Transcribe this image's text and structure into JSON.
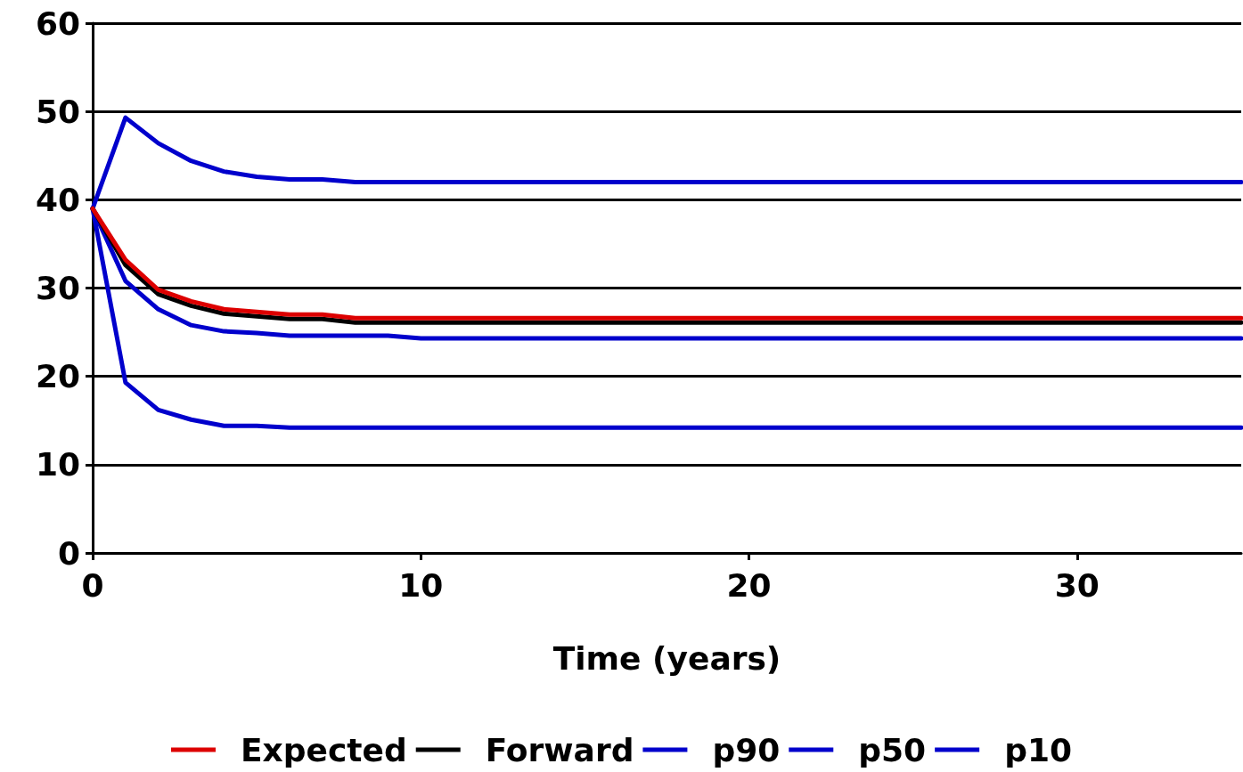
{
  "chart_data": {
    "type": "line",
    "xlabel": "Time (years)",
    "x": [
      0,
      1,
      2,
      3,
      4,
      5,
      6,
      7,
      8,
      9,
      10,
      11,
      12,
      13,
      14,
      15,
      16,
      17,
      18,
      19,
      20,
      21,
      22,
      23,
      24,
      25,
      26,
      27,
      28,
      29,
      30,
      31,
      32,
      33,
      34,
      35
    ],
    "series": [
      {
        "name": "Expected",
        "color": "#dd0000",
        "values": [
          39,
          33.2,
          29.8,
          28.5,
          27.6,
          27.3,
          27.0,
          27.0,
          26.6,
          26.6,
          26.6,
          26.6,
          26.6,
          26.6,
          26.6,
          26.6,
          26.6,
          26.6,
          26.6,
          26.6,
          26.6,
          26.6,
          26.6,
          26.6,
          26.6,
          26.6,
          26.6,
          26.6,
          26.6,
          26.6,
          26.6,
          26.6,
          26.6,
          26.6,
          26.6,
          26.6
        ]
      },
      {
        "name": "Forward",
        "color": "#000000",
        "values": [
          39,
          32.6,
          29.3,
          28.0,
          27.1,
          26.8,
          26.5,
          26.5,
          26.1,
          26.1,
          26.1,
          26.1,
          26.1,
          26.1,
          26.1,
          26.1,
          26.1,
          26.1,
          26.1,
          26.1,
          26.1,
          26.1,
          26.1,
          26.1,
          26.1,
          26.1,
          26.1,
          26.1,
          26.1,
          26.1,
          26.1,
          26.1,
          26.1,
          26.1,
          26.1,
          26.1
        ]
      },
      {
        "name": "p90",
        "color": "#0000cc",
        "values": [
          39,
          49.3,
          46.4,
          44.4,
          43.2,
          42.6,
          42.3,
          42.3,
          42.0,
          42.0,
          42.0,
          42.0,
          42.0,
          42.0,
          42.0,
          42.0,
          42.0,
          42.0,
          42.0,
          42.0,
          42.0,
          42.0,
          42.0,
          42.0,
          42.0,
          42.0,
          42.0,
          42.0,
          42.0,
          42.0,
          42.0,
          42.0,
          42.0,
          42.0,
          42.0,
          42.0
        ]
      },
      {
        "name": "p50",
        "color": "#0000cc",
        "values": [
          39,
          30.8,
          27.6,
          25.8,
          25.1,
          24.9,
          24.6,
          24.6,
          24.6,
          24.6,
          24.3,
          24.3,
          24.3,
          24.3,
          24.3,
          24.3,
          24.3,
          24.3,
          24.3,
          24.3,
          24.3,
          24.3,
          24.3,
          24.3,
          24.3,
          24.3,
          24.3,
          24.3,
          24.3,
          24.3,
          24.3,
          24.3,
          24.3,
          24.3,
          24.3,
          24.3
        ]
      },
      {
        "name": "p10",
        "color": "#0000cc",
        "values": [
          39,
          19.3,
          16.2,
          15.1,
          14.4,
          14.4,
          14.2,
          14.2,
          14.2,
          14.2,
          14.2,
          14.2,
          14.2,
          14.2,
          14.2,
          14.2,
          14.2,
          14.2,
          14.2,
          14.2,
          14.2,
          14.2,
          14.2,
          14.2,
          14.2,
          14.2,
          14.2,
          14.2,
          14.2,
          14.2,
          14.2,
          14.2,
          14.2,
          14.2,
          14.2,
          14.2
        ]
      }
    ],
    "xlim": [
      0,
      35
    ],
    "xticks": [
      0,
      10,
      20,
      30
    ],
    "ylim": [
      0,
      60
    ],
    "yticks": [
      0,
      10,
      20,
      30,
      40,
      50,
      60
    ],
    "grid": "y",
    "legend": "bottom",
    "marker": "none"
  }
}
